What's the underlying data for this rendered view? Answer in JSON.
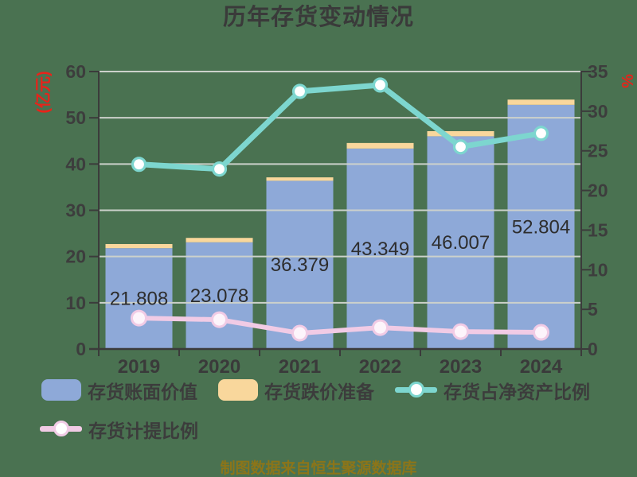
{
  "title": "历年存货变动情况",
  "caption": "制图数据来自恒生聚源数据库",
  "colors": {
    "background": "#4a7251",
    "grid": "#ccd1cb",
    "axis": "#3b3b3b",
    "tick_label": "#3d3d3d",
    "axis_label_red": "#e8231a",
    "bar_blue": "#8ea9d8",
    "bar_orange": "#f9d79c",
    "line_teal": "#7dd6cf",
    "line_pink": "#f1cbe5",
    "bar_label": "#2d2d2d",
    "caption": "#8c7519",
    "title": "#3a3a3a",
    "legend_text": "#3c3c3c"
  },
  "chart_data": {
    "type": "combo-bar-line",
    "categories": [
      "2019",
      "2020",
      "2021",
      "2022",
      "2023",
      "2024"
    ],
    "series": [
      {
        "name": "存货账面价值",
        "type": "bar",
        "stack": true,
        "axis": "left",
        "color": "#8ea9d8",
        "values": [
          21.808,
          23.078,
          36.379,
          43.349,
          46.007,
          52.804
        ]
      },
      {
        "name": "存货跌价准备",
        "type": "bar",
        "stack": true,
        "axis": "left",
        "color": "#f9d79c",
        "values": [
          0.89,
          0.95,
          0.74,
          1.2,
          1.1,
          1.13
        ]
      },
      {
        "name": "存货占净资产比例",
        "type": "line",
        "axis": "right",
        "color": "#7dd6cf",
        "values": [
          23.3,
          22.7,
          32.5,
          33.3,
          25.5,
          27.2
        ]
      },
      {
        "name": "存货计提比例",
        "type": "line",
        "axis": "right",
        "color": "#f1cbe5",
        "values": [
          3.9,
          3.7,
          2.0,
          2.7,
          2.2,
          2.1
        ]
      }
    ],
    "bar_labels": [
      "21.808",
      "23.078",
      "36.379",
      "43.349",
      "46.007",
      "52.804"
    ],
    "left_axis": {
      "label": "(亿元)",
      "min": 0,
      "max": 60,
      "step": 10,
      "ticks": [
        0,
        10,
        20,
        30,
        40,
        50,
        60
      ]
    },
    "right_axis": {
      "label": "%",
      "min": 0,
      "max": 35,
      "step": 5,
      "ticks": [
        0,
        5,
        10,
        15,
        20,
        25,
        30,
        35
      ]
    },
    "grid": true,
    "legend_position": "bottom-left"
  }
}
